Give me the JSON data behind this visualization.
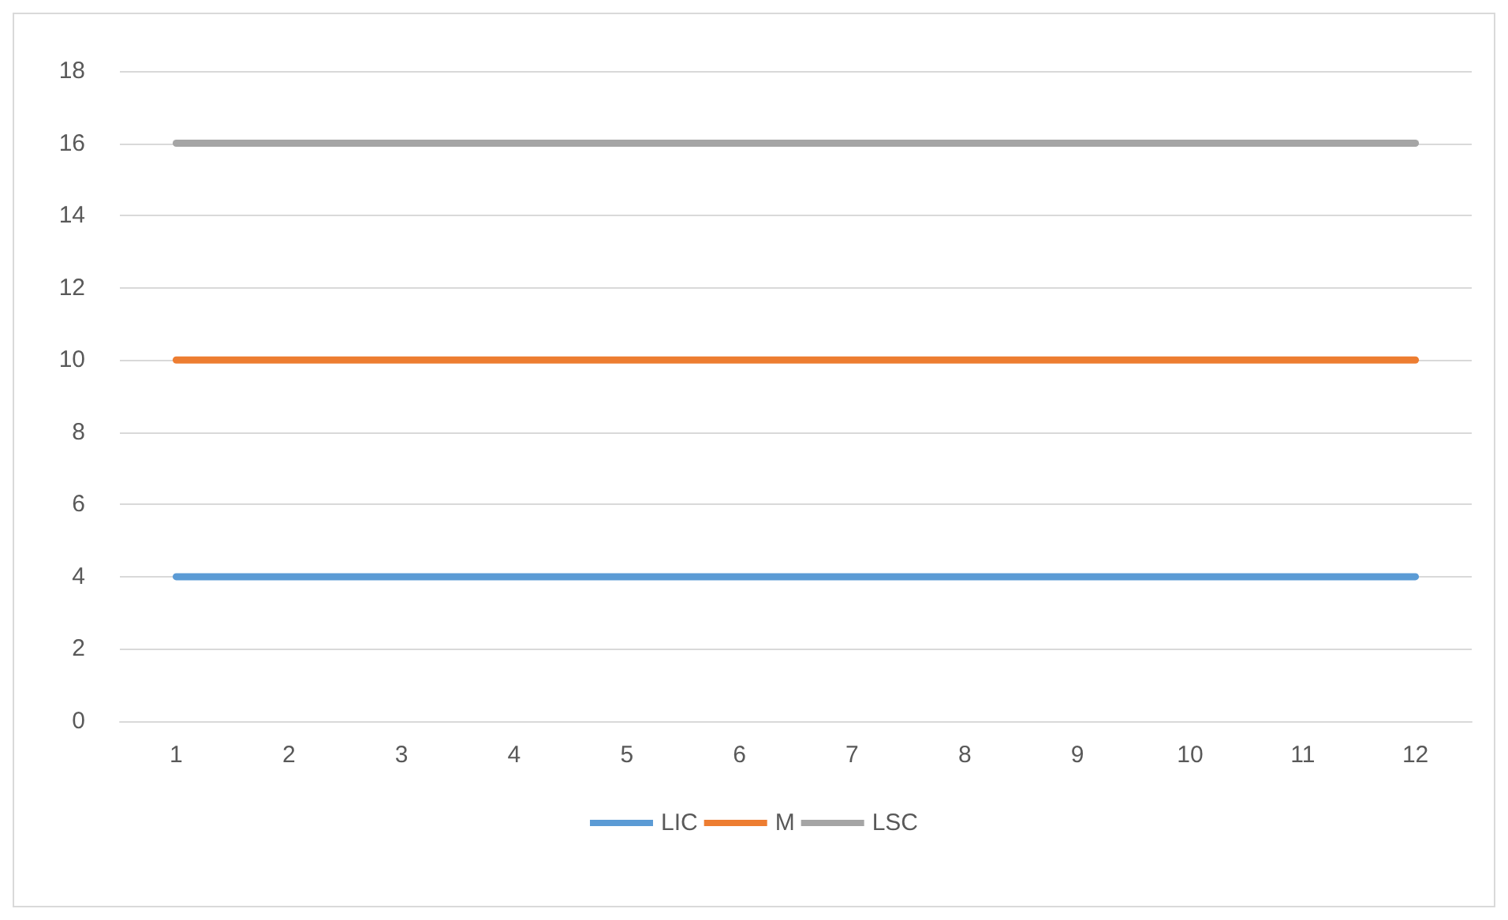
{
  "chart_data": {
    "type": "line",
    "categories": [
      "1",
      "2",
      "3",
      "4",
      "5",
      "6",
      "7",
      "8",
      "9",
      "10",
      "11",
      "12"
    ],
    "series": [
      {
        "name": "LIC",
        "color": "#5b9bd5",
        "values": [
          4,
          4,
          4,
          4,
          4,
          4,
          4,
          4,
          4,
          4,
          4,
          4
        ]
      },
      {
        "name": "M",
        "color": "#ed7d31",
        "values": [
          10,
          10,
          10,
          10,
          10,
          10,
          10,
          10,
          10,
          10,
          10,
          10
        ]
      },
      {
        "name": "LSC",
        "color": "#a5a5a5",
        "values": [
          16,
          16,
          16,
          16,
          16,
          16,
          16,
          16,
          16,
          16,
          16,
          16
        ]
      }
    ],
    "ylim": [
      0,
      18
    ],
    "yticks": [
      0,
      2,
      4,
      6,
      8,
      10,
      12,
      14,
      16,
      18
    ],
    "grid": "y",
    "legend": "bottom",
    "marker": "none",
    "line_style": "solid"
  }
}
